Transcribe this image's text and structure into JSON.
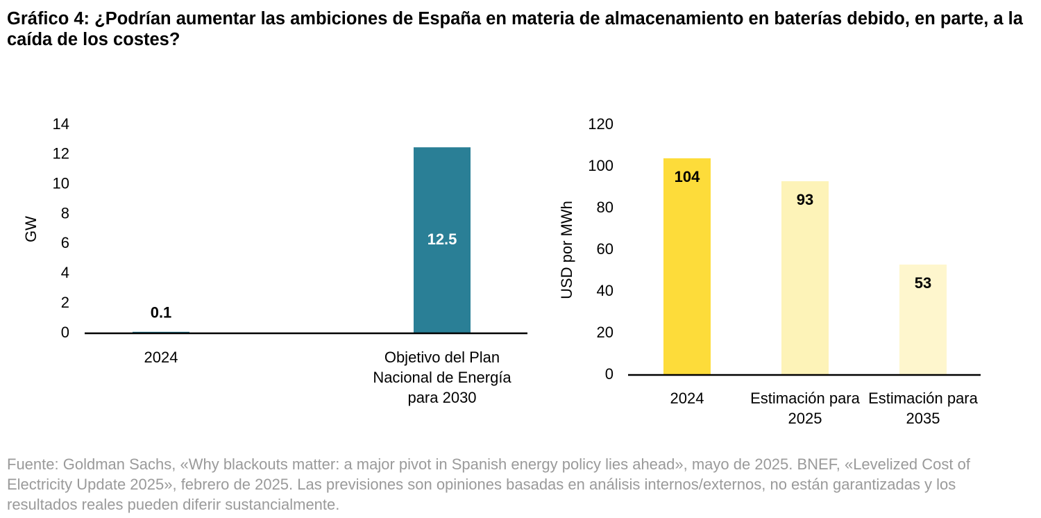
{
  "title": "Gráfico 4: ¿Podrían aumentar las ambiciones de España en materia de almacenamiento en baterías debido, en parte, a la caída de los costes?",
  "chart_data": [
    {
      "type": "bar",
      "y_label": "GW",
      "categories": [
        "2024",
        "Objetivo del Plan Nacional de Energía para 2030"
      ],
      "values": [
        0.1,
        12.5
      ],
      "colors": [
        "#2a7f96",
        "#2a7f96"
      ],
      "value_label_color": "#ffffff",
      "ylim": [
        0,
        14
      ],
      "yticks": [
        0,
        2,
        4,
        6,
        8,
        10,
        12,
        14
      ],
      "grid": false
    },
    {
      "type": "bar",
      "y_label": "USD por MWh",
      "categories": [
        "2024",
        "Estimación para 2025",
        "Estimación para 2035"
      ],
      "values": [
        104,
        93,
        53
      ],
      "colors": [
        "#fddc3a",
        "#fdf3b8",
        "#fef6cd"
      ],
      "value_label_color": "#000000",
      "ylim": [
        0,
        120
      ],
      "yticks": [
        0,
        20,
        40,
        60,
        80,
        100,
        120
      ],
      "grid": false
    }
  ],
  "source": "Fuente: Goldman Sachs, «Why blackouts matter: a major pivot in Spanish energy policy lies ahead», mayo de 2025. BNEF, «Levelized Cost of Electricity Update 2025», febrero de 2025. Las previsiones son opiniones basadas en análisis internos/externos, no están garantizadas y los resultados reales pueden diferir sustancialmente."
}
